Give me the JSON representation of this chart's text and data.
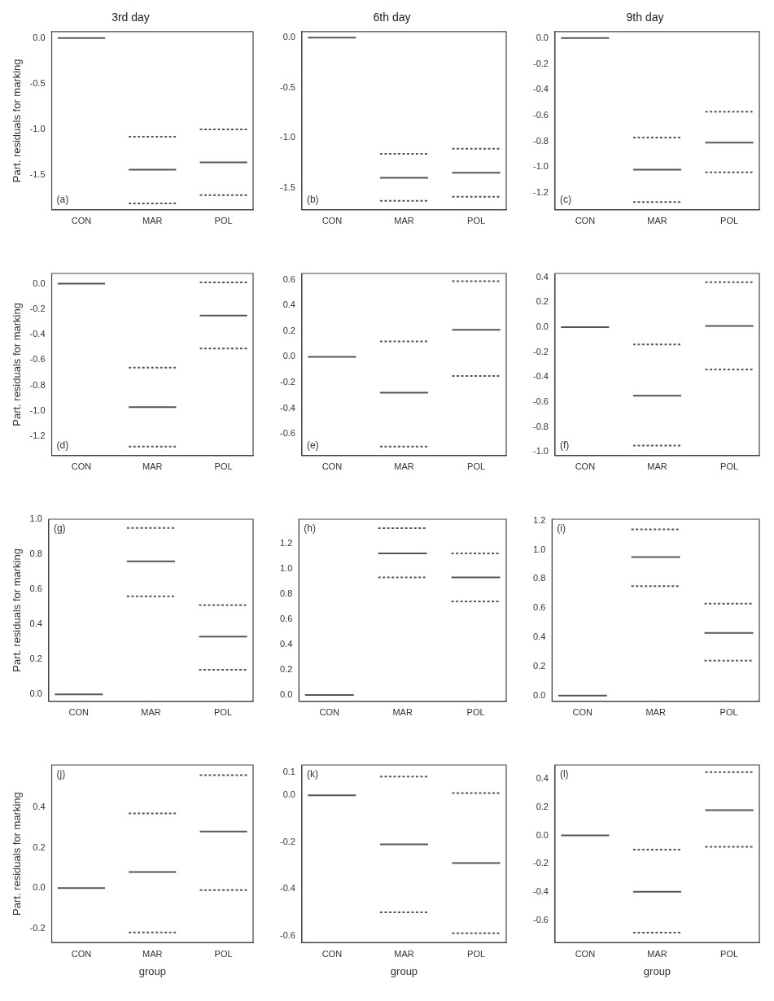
{
  "chart_data": [
    {
      "type": "line",
      "title": "3rd day",
      "ylabel": "Part. residuals for marking",
      "categories": [
        null,
        null,
        "CON",
        null,
        null,
        null,
        null,
        null,
        "MAR",
        null,
        null,
        null,
        null,
        null,
        "POL",
        null,
        null
      ],
      "ylim": [
        -1.88,
        0.07
      ],
      "yticks": [
        -1.5,
        {
          "value": -1,
          "label": "-1.0"
        },
        -0.5,
        {
          "value": 0,
          "label": "0.0"
        }
      ],
      "annotations": [
        "(a)"
      ],
      "series": [
        {
          "color": "#555555",
          "values": [
            0,
            0,
            0,
            0,
            0,
            null,
            -1.44,
            -1.44,
            -1.44,
            -1.44,
            -1.44,
            null,
            -1.36,
            -1.36,
            -1.36,
            -1.36,
            -1.36
          ]
        },
        {
          "color": "#555555",
          "line_style": "dashed",
          "values": [
            null,
            null,
            null,
            null,
            null,
            null,
            -1.81,
            -1.81,
            -1.81,
            -1.81,
            -1.81,
            null,
            -1.72,
            -1.72,
            -1.72,
            -1.72,
            -1.72
          ]
        },
        {
          "color": "#555555",
          "line_style": "dashed",
          "values": [
            null,
            null,
            null,
            null,
            null,
            null,
            -1.08,
            -1.08,
            -1.08,
            -1.08,
            -1.08,
            null,
            -1.0,
            -1.0,
            -1.0,
            -1.0,
            -1.0
          ]
        }
      ]
    },
    {
      "type": "line",
      "title": "6th day",
      "categories": [
        null,
        null,
        "CON",
        null,
        null,
        null,
        null,
        null,
        "MAR",
        null,
        null,
        null,
        null,
        null,
        "POL",
        null,
        null
      ],
      "ylim": [
        -1.72,
        0.06
      ],
      "yticks": [
        -1.5,
        {
          "value": -1,
          "label": "-1.0"
        },
        -0.5,
        {
          "value": 0,
          "label": "0.0"
        }
      ],
      "annotations": [
        "(b)"
      ],
      "series": [
        {
          "color": "#555555",
          "values": [
            0,
            0,
            0,
            0,
            0,
            null,
            -1.4,
            -1.4,
            -1.4,
            -1.4,
            -1.4,
            null,
            -1.35,
            -1.35,
            -1.35,
            -1.35,
            -1.35
          ]
        },
        {
          "color": "#555555",
          "line_style": "dashed",
          "values": [
            null,
            null,
            null,
            null,
            null,
            null,
            -1.63,
            -1.63,
            -1.63,
            -1.63,
            -1.63,
            null,
            -1.59,
            -1.59,
            -1.59,
            -1.59,
            -1.59
          ]
        },
        {
          "color": "#555555",
          "line_style": "dashed",
          "values": [
            null,
            null,
            null,
            null,
            null,
            null,
            -1.16,
            -1.16,
            -1.16,
            -1.16,
            -1.16,
            null,
            -1.11,
            -1.11,
            -1.11,
            -1.11,
            -1.11
          ]
        }
      ]
    },
    {
      "type": "line",
      "title": "9th day",
      "categories": [
        null,
        null,
        "CON",
        null,
        null,
        null,
        null,
        null,
        "MAR",
        null,
        null,
        null,
        null,
        null,
        "POL",
        null,
        null
      ],
      "ylim": [
        -1.33,
        0.05
      ],
      "yticks": [
        -1.2,
        {
          "value": -1,
          "label": "-1.0"
        },
        -0.8,
        -0.6,
        -0.4,
        -0.2,
        {
          "value": 0,
          "label": "0.0"
        }
      ],
      "annotations": [
        "(c)"
      ],
      "series": [
        {
          "color": "#555555",
          "values": [
            0,
            0,
            0,
            0,
            0,
            null,
            -1.02,
            -1.02,
            -1.02,
            -1.02,
            -1.02,
            null,
            -0.81,
            -0.81,
            -0.81,
            -0.81,
            -0.81
          ]
        },
        {
          "color": "#555555",
          "line_style": "dashed",
          "values": [
            null,
            null,
            null,
            null,
            null,
            null,
            -1.27,
            -1.27,
            -1.27,
            -1.27,
            -1.27,
            null,
            -1.04,
            -1.04,
            -1.04,
            -1.04,
            -1.04
          ]
        },
        {
          "color": "#555555",
          "line_style": "dashed",
          "values": [
            null,
            null,
            null,
            null,
            null,
            null,
            -0.77,
            -0.77,
            -0.77,
            -0.77,
            -0.77,
            null,
            -0.57,
            -0.57,
            -0.57,
            -0.57,
            -0.57
          ]
        }
      ]
    },
    {
      "type": "line",
      "ylabel": "Part. residuals for marking",
      "categories": [
        null,
        null,
        "CON",
        null,
        null,
        null,
        null,
        null,
        "MAR",
        null,
        null,
        null,
        null,
        null,
        "POL",
        null,
        null
      ],
      "ylim": [
        -1.35,
        0.08
      ],
      "yticks": [
        -1.2,
        {
          "value": -1,
          "label": "-1.0"
        },
        -0.8,
        -0.6,
        -0.4,
        -0.2,
        {
          "value": 0,
          "label": "0.0"
        }
      ],
      "annotations": [
        "(d)"
      ],
      "series": [
        {
          "color": "#555555",
          "values": [
            0,
            0,
            0,
            0,
            0,
            null,
            -0.97,
            -0.97,
            -0.97,
            -0.97,
            -0.97,
            null,
            -0.25,
            -0.25,
            -0.25,
            -0.25,
            -0.25
          ]
        },
        {
          "color": "#555555",
          "line_style": "dashed",
          "values": [
            null,
            null,
            null,
            null,
            null,
            null,
            -1.28,
            -1.28,
            -1.28,
            -1.28,
            -1.28,
            null,
            -0.51,
            -0.51,
            -0.51,
            -0.51,
            -0.51
          ]
        },
        {
          "color": "#555555",
          "line_style": "dashed",
          "values": [
            null,
            null,
            null,
            null,
            null,
            null,
            -0.66,
            -0.66,
            -0.66,
            -0.66,
            -0.66,
            null,
            0.01,
            0.01,
            0.01,
            0.01,
            0.01
          ]
        }
      ]
    },
    {
      "type": "line",
      "categories": [
        null,
        null,
        "CON",
        null,
        null,
        null,
        null,
        null,
        "MAR",
        null,
        null,
        null,
        null,
        null,
        "POL",
        null,
        null
      ],
      "ylim": [
        -0.77,
        0.65
      ],
      "yticks": [
        -0.6,
        -0.4,
        -0.2,
        {
          "value": 0,
          "label": "0.0"
        },
        0.2,
        0.4,
        0.6
      ],
      "annotations": [
        "(e)"
      ],
      "series": [
        {
          "color": "#555555",
          "values": [
            0,
            0,
            0,
            0,
            0,
            null,
            -0.28,
            -0.28,
            -0.28,
            -0.28,
            -0.28,
            null,
            0.21,
            0.21,
            0.21,
            0.21,
            0.21
          ]
        },
        {
          "color": "#555555",
          "line_style": "dashed",
          "values": [
            null,
            null,
            null,
            null,
            null,
            null,
            -0.7,
            -0.7,
            -0.7,
            -0.7,
            -0.7,
            null,
            -0.15,
            -0.15,
            -0.15,
            -0.15,
            -0.15
          ]
        },
        {
          "color": "#555555",
          "line_style": "dashed",
          "values": [
            null,
            null,
            null,
            null,
            null,
            null,
            0.12,
            0.12,
            0.12,
            0.12,
            0.12,
            null,
            0.59,
            0.59,
            0.59,
            0.59,
            0.59
          ]
        }
      ]
    },
    {
      "type": "line",
      "categories": [
        null,
        null,
        "CON",
        null,
        null,
        null,
        null,
        null,
        "MAR",
        null,
        null,
        null,
        null,
        null,
        "POL",
        null,
        null
      ],
      "ylim": [
        -1.03,
        0.43
      ],
      "yticks": [
        {
          "value": -1,
          "label": "-1.0"
        },
        -0.8,
        -0.6,
        -0.4,
        -0.2,
        {
          "value": 0,
          "label": "0.0"
        },
        0.2,
        0.4
      ],
      "annotations": [
        "(f)"
      ],
      "series": [
        {
          "color": "#555555",
          "values": [
            0,
            0,
            0,
            0,
            0,
            null,
            -0.55,
            -0.55,
            -0.55,
            -0.55,
            -0.55,
            null,
            0.01,
            0.01,
            0.01,
            0.01,
            0.01
          ]
        },
        {
          "color": "#555555",
          "line_style": "dashed",
          "values": [
            null,
            null,
            null,
            null,
            null,
            null,
            -0.95,
            -0.95,
            -0.95,
            -0.95,
            -0.95,
            null,
            -0.34,
            -0.34,
            -0.34,
            -0.34,
            -0.34
          ]
        },
        {
          "color": "#555555",
          "line_style": "dashed",
          "values": [
            null,
            null,
            null,
            null,
            null,
            null,
            -0.14,
            -0.14,
            -0.14,
            -0.14,
            -0.14,
            null,
            0.36,
            0.36,
            0.36,
            0.36,
            0.36
          ]
        }
      ]
    },
    {
      "type": "line",
      "ylabel": "Part. residuals for marking",
      "categories": [
        null,
        null,
        "CON",
        null,
        null,
        null,
        null,
        null,
        "MAR",
        null,
        null,
        null,
        null,
        null,
        "POL",
        null,
        null
      ],
      "ylim": [
        -0.04,
        1.0
      ],
      "yticks": [
        {
          "value": 0,
          "label": "0.0"
        },
        0.2,
        0.4,
        0.6,
        0.8,
        {
          "value": 1,
          "label": "1.0"
        }
      ],
      "annotations": [
        "(g)"
      ],
      "series": [
        {
          "color": "#555555",
          "values": [
            0,
            0,
            0,
            0,
            0,
            null,
            0.76,
            0.76,
            0.76,
            0.76,
            0.76,
            null,
            0.33,
            0.33,
            0.33,
            0.33,
            0.33
          ]
        },
        {
          "color": "#555555",
          "line_style": "dashed",
          "values": [
            null,
            null,
            null,
            null,
            null,
            null,
            0.56,
            0.56,
            0.56,
            0.56,
            0.56,
            null,
            0.14,
            0.14,
            0.14,
            0.14,
            0.14
          ]
        },
        {
          "color": "#555555",
          "line_style": "dashed",
          "values": [
            null,
            null,
            null,
            null,
            null,
            null,
            0.95,
            0.95,
            0.95,
            0.95,
            0.95,
            null,
            0.51,
            0.51,
            0.51,
            0.51,
            0.51
          ]
        }
      ]
    },
    {
      "type": "line",
      "categories": [
        null,
        null,
        "CON",
        null,
        null,
        null,
        null,
        null,
        "MAR",
        null,
        null,
        null,
        null,
        null,
        "POL",
        null,
        null
      ],
      "ylim": [
        -0.05,
        1.39
      ],
      "yticks": [
        {
          "value": 0,
          "label": "0.0"
        },
        0.2,
        0.4,
        0.6,
        0.8,
        {
          "value": 1,
          "label": "1.0"
        },
        1.2
      ],
      "annotations": [
        "(h)"
      ],
      "series": [
        {
          "color": "#555555",
          "values": [
            0,
            0,
            0,
            0,
            0,
            null,
            1.12,
            1.12,
            1.12,
            1.12,
            1.12,
            null,
            0.93,
            0.93,
            0.93,
            0.93,
            0.93
          ]
        },
        {
          "color": "#555555",
          "line_style": "dashed",
          "values": [
            null,
            null,
            null,
            null,
            null,
            null,
            0.93,
            0.93,
            0.93,
            0.93,
            0.93,
            null,
            0.74,
            0.74,
            0.74,
            0.74,
            0.74
          ]
        },
        {
          "color": "#555555",
          "line_style": "dashed",
          "values": [
            null,
            null,
            null,
            null,
            null,
            null,
            1.32,
            1.32,
            1.32,
            1.32,
            1.32,
            null,
            1.12,
            1.12,
            1.12,
            1.12,
            1.12
          ]
        }
      ]
    },
    {
      "type": "line",
      "categories": [
        null,
        null,
        "CON",
        null,
        null,
        null,
        null,
        null,
        "MAR",
        null,
        null,
        null,
        null,
        null,
        "POL",
        null,
        null
      ],
      "ylim": [
        -0.04,
        1.21
      ],
      "yticks": [
        {
          "value": 0,
          "label": "0.0"
        },
        0.2,
        0.4,
        0.6,
        0.8,
        {
          "value": 1,
          "label": "1.0"
        },
        1.2
      ],
      "annotations": [
        "(i)"
      ],
      "series": [
        {
          "color": "#555555",
          "values": [
            0,
            0,
            0,
            0,
            0,
            null,
            0.95,
            0.95,
            0.95,
            0.95,
            0.95,
            null,
            0.43,
            0.43,
            0.43,
            0.43,
            0.43
          ]
        },
        {
          "color": "#555555",
          "line_style": "dashed",
          "values": [
            null,
            null,
            null,
            null,
            null,
            null,
            0.75,
            0.75,
            0.75,
            0.75,
            0.75,
            null,
            0.24,
            0.24,
            0.24,
            0.24,
            0.24
          ]
        },
        {
          "color": "#555555",
          "line_style": "dashed",
          "values": [
            null,
            null,
            null,
            null,
            null,
            null,
            1.14,
            1.14,
            1.14,
            1.14,
            1.14,
            null,
            0.63,
            0.63,
            0.63,
            0.63,
            0.63
          ]
        }
      ]
    },
    {
      "type": "line",
      "ylabel": "Part. residuals for marking",
      "xlabel": "group",
      "categories": [
        null,
        null,
        "CON",
        null,
        null,
        null,
        null,
        null,
        "MAR",
        null,
        null,
        null,
        null,
        null,
        "POL",
        null,
        null
      ],
      "ylim": [
        -0.27,
        0.61
      ],
      "yticks": [
        -0.2,
        {
          "value": 0,
          "label": "0.0"
        },
        0.2,
        0.4
      ],
      "annotations": [
        "(j)"
      ],
      "series": [
        {
          "color": "#555555",
          "values": [
            0,
            0,
            0,
            0,
            0,
            null,
            0.08,
            0.08,
            0.08,
            0.08,
            0.08,
            null,
            0.28,
            0.28,
            0.28,
            0.28,
            0.28
          ]
        },
        {
          "color": "#555555",
          "line_style": "dashed",
          "values": [
            null,
            null,
            null,
            null,
            null,
            null,
            -0.22,
            -0.22,
            -0.22,
            -0.22,
            -0.22,
            null,
            -0.01,
            -0.01,
            -0.01,
            -0.01,
            -0.01
          ]
        },
        {
          "color": "#555555",
          "line_style": "dashed",
          "values": [
            null,
            null,
            null,
            null,
            null,
            null,
            0.37,
            0.37,
            0.37,
            0.37,
            0.37,
            null,
            0.56,
            0.56,
            0.56,
            0.56,
            0.56
          ]
        }
      ]
    },
    {
      "type": "line",
      "xlabel": "group",
      "categories": [
        null,
        null,
        "CON",
        null,
        null,
        null,
        null,
        null,
        "MAR",
        null,
        null,
        null,
        null,
        null,
        "POL",
        null,
        null
      ],
      "ylim": [
        -0.63,
        0.13
      ],
      "yticks": [
        -0.6,
        -0.4,
        -0.2,
        {
          "value": 0,
          "label": "0.0"
        },
        0.1
      ],
      "annotations": [
        "(k)"
      ],
      "series": [
        {
          "color": "#555555",
          "values": [
            0,
            0,
            0,
            0,
            0,
            null,
            -0.21,
            -0.21,
            -0.21,
            -0.21,
            -0.21,
            null,
            -0.29,
            -0.29,
            -0.29,
            -0.29,
            -0.29
          ]
        },
        {
          "color": "#555555",
          "line_style": "dashed",
          "values": [
            null,
            null,
            null,
            null,
            null,
            null,
            -0.5,
            -0.5,
            -0.5,
            -0.5,
            -0.5,
            null,
            -0.59,
            -0.59,
            -0.59,
            -0.59,
            -0.59
          ]
        },
        {
          "color": "#555555",
          "line_style": "dashed",
          "values": [
            null,
            null,
            null,
            null,
            null,
            null,
            0.08,
            0.08,
            0.08,
            0.08,
            0.08,
            null,
            0.01,
            0.01,
            0.01,
            0.01,
            0.01
          ]
        }
      ]
    },
    {
      "type": "line",
      "xlabel": "group",
      "categories": [
        null,
        null,
        "CON",
        null,
        null,
        null,
        null,
        null,
        "MAR",
        null,
        null,
        null,
        null,
        null,
        "POL",
        null,
        null
      ],
      "ylim": [
        -0.76,
        0.5
      ],
      "yticks": [
        -0.6,
        -0.4,
        -0.2,
        {
          "value": 0,
          "label": "0.0"
        },
        0.2,
        0.4
      ],
      "annotations": [
        "(l)"
      ],
      "series": [
        {
          "color": "#555555",
          "values": [
            0,
            0,
            0,
            0,
            0,
            null,
            -0.4,
            -0.4,
            -0.4,
            -0.4,
            -0.4,
            null,
            0.18,
            0.18,
            0.18,
            0.18,
            0.18
          ]
        },
        {
          "color": "#555555",
          "line_style": "dashed",
          "values": [
            null,
            null,
            null,
            null,
            null,
            null,
            -0.69,
            -0.69,
            -0.69,
            -0.69,
            -0.69,
            null,
            -0.08,
            -0.08,
            -0.08,
            -0.08,
            -0.08
          ]
        },
        {
          "color": "#555555",
          "line_style": "dashed",
          "values": [
            null,
            null,
            null,
            null,
            null,
            null,
            -0.1,
            -0.1,
            -0.1,
            -0.1,
            -0.1,
            null,
            0.45,
            0.45,
            0.45,
            0.45,
            0.45
          ]
        }
      ]
    }
  ]
}
